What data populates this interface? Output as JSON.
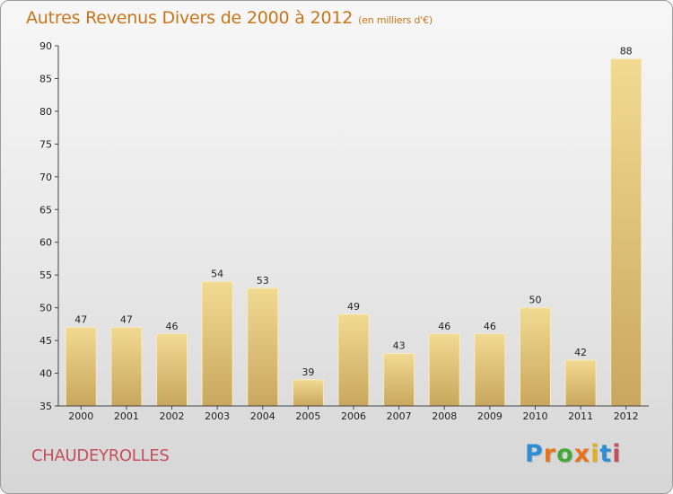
{
  "title": "Autres Revenus Divers de 2000 à 2012",
  "subtitle": "(en milliers d'€)",
  "commune": "CHAUDEYROLLES",
  "logo": {
    "letters": [
      "P",
      "r",
      "o",
      "x",
      "i",
      "t",
      "i"
    ],
    "colors": [
      "#2d8ed6",
      "#e8731f",
      "#47a83a",
      "#e8731f",
      "#e0b020",
      "#2d8ed6",
      "#c4505c"
    ]
  },
  "colors": {
    "bar_top": "#f2da92",
    "bar_bottom": "#c9a75e",
    "axis": "#444444",
    "title": "#c8741a",
    "commune": "#c4505c"
  },
  "chart_data": {
    "type": "bar",
    "title": "Autres Revenus Divers de 2000 à 2012",
    "subtitle": "(en milliers d'€)",
    "categories": [
      "2000",
      "2001",
      "2002",
      "2003",
      "2004",
      "2005",
      "2006",
      "2007",
      "2008",
      "2009",
      "2010",
      "2011",
      "2012"
    ],
    "values": [
      47,
      47,
      46,
      54,
      53,
      39,
      49,
      43,
      46,
      46,
      50,
      42,
      88
    ],
    "xlabel": "",
    "ylabel": "",
    "ylim": [
      35,
      90
    ],
    "yticks": [
      35,
      40,
      45,
      50,
      55,
      60,
      65,
      70,
      75,
      80,
      85,
      90
    ],
    "grid": false,
    "legend": "none"
  }
}
